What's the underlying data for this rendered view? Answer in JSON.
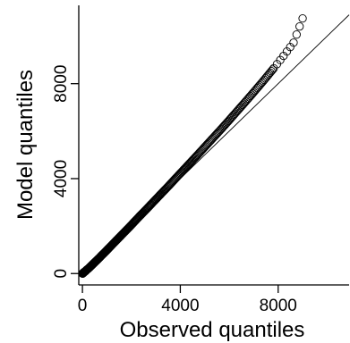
{
  "chart_data": {
    "type": "scatter",
    "xlabel": "Observed quantiles",
    "ylabel": "Model quantiles",
    "xlim": [
      -150,
      10900
    ],
    "ylim": [
      -480,
      11300
    ],
    "x_ticks": [
      0,
      4000,
      8000
    ],
    "y_ticks": [
      0,
      4000,
      8000
    ],
    "grid": false,
    "legend": "none",
    "reference_line": {
      "slope": 1,
      "intercept": 0
    },
    "series": [
      {
        "marker": "open-circle",
        "x": [
          5,
          15,
          30,
          50,
          80,
          120,
          170,
          230,
          300,
          380,
          470,
          570,
          680,
          800,
          930,
          1070,
          1220,
          1380,
          1550,
          1730,
          1920,
          2120,
          2330,
          2550,
          2780,
          3020,
          3270,
          3530,
          3800,
          4080,
          4370,
          4670,
          4980,
          5300,
          5630,
          5970,
          6320,
          6680,
          7050,
          7430,
          7820,
          8220,
          8630,
          9000
        ],
        "y": [
          0,
          10,
          20,
          40,
          70,
          100,
          150,
          200,
          270,
          350,
          440,
          540,
          650,
          780,
          910,
          1060,
          1220,
          1390,
          1570,
          1760,
          1960,
          2180,
          2410,
          2640,
          2890,
          3150,
          3420,
          3700,
          4000,
          4310,
          4630,
          4960,
          5310,
          5670,
          6040,
          6430,
          6840,
          7260,
          7700,
          8160,
          8650,
          9170,
          9730,
          10750
        ]
      }
    ]
  }
}
